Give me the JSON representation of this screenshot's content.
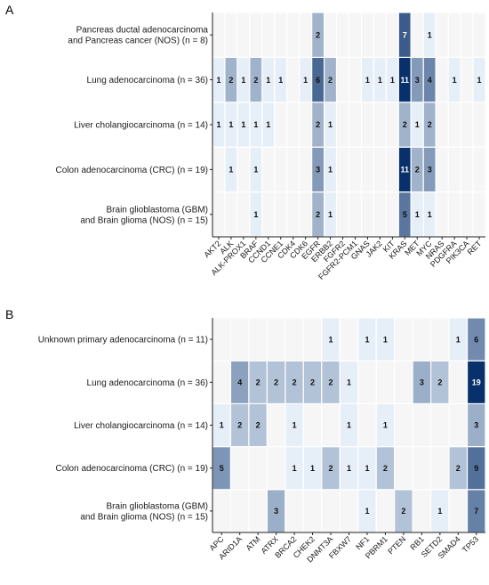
{
  "colors": {
    "empty": "#f6f6f6",
    "low": "#e6eff8",
    "high": "#08306b",
    "grid_line": "#ffffff",
    "axis": "#222222"
  },
  "chart_data": [
    {
      "type": "heatmap",
      "panel": "A",
      "rows": [
        "Brain glioblastoma (GBM)\nand Brain glioma (NOS) (n = 15)",
        "Colon adenocarcinoma (CRC) (n = 19)",
        "Liver cholangiocarcinoma (n = 14)",
        "Lung adenocarcinoma (n = 36)",
        "Pancreas ductal adenocarcinoma\nand Pancreas cancer (NOS) (n = 8)"
      ],
      "columns": [
        "AKT2",
        "ALK",
        "ALK-PROX1",
        "BRAF",
        "CCND1",
        "CCNE1",
        "CDK4",
        "CDK6",
        "EGFR",
        "ERBB2",
        "FGFR2",
        "FGFR2-PCM1",
        "GNAS",
        "JAK2",
        "KIT",
        "KRAS",
        "MET",
        "MYC",
        "NRAS",
        "PDGFRA",
        "PIK3CA",
        "RET"
      ],
      "values": [
        [
          0,
          0,
          0,
          1,
          0,
          0,
          0,
          0,
          2,
          1,
          0,
          0,
          0,
          0,
          0,
          5,
          1,
          1,
          0,
          0,
          0,
          0
        ],
        [
          0,
          1,
          0,
          1,
          0,
          0,
          0,
          0,
          3,
          1,
          0,
          0,
          0,
          0,
          0,
          11,
          2,
          3,
          0,
          0,
          0,
          0
        ],
        [
          1,
          1,
          1,
          1,
          1,
          0,
          0,
          0,
          2,
          1,
          0,
          0,
          0,
          0,
          0,
          2,
          1,
          2,
          0,
          0,
          0,
          0
        ],
        [
          1,
          2,
          1,
          2,
          1,
          1,
          0,
          1,
          6,
          2,
          0,
          0,
          1,
          1,
          1,
          11,
          3,
          4,
          0,
          1,
          0,
          1
        ],
        [
          0,
          0,
          0,
          0,
          0,
          0,
          0,
          0,
          2,
          0,
          0,
          0,
          0,
          0,
          0,
          7,
          0,
          1,
          0,
          0,
          0,
          0
        ]
      ],
      "vmax": 11
    },
    {
      "type": "heatmap",
      "panel": "B",
      "rows": [
        "Brain glioblastoma (GBM)\nand Brain glioma (NOS) (n = 15)",
        "Colon adenocarcinoma (CRC) (n = 19)",
        "Liver cholangiocarcinoma (n = 14)",
        "Lung adenocarcinoma (n = 36)",
        "Unknown primary adenocarcinoma (n = 11)"
      ],
      "columns": [
        "APC",
        "ARID1A",
        "ATM",
        "ATRX",
        "BRCA2",
        "CHEK2",
        "DNMT3A",
        "FBXW7",
        "NF1",
        "PBRM1",
        "PTEN",
        "RB1",
        "SETD2",
        "SMAD4",
        "TP53"
      ],
      "values": [
        [
          0,
          0,
          0,
          3,
          0,
          0,
          0,
          0,
          1,
          0,
          2,
          0,
          1,
          0,
          7
        ],
        [
          5,
          0,
          0,
          0,
          1,
          1,
          2,
          1,
          1,
          2,
          0,
          0,
          0,
          2,
          9
        ],
        [
          1,
          2,
          2,
          0,
          1,
          0,
          0,
          1,
          0,
          1,
          0,
          0,
          0,
          0,
          3
        ],
        [
          0,
          4,
          2,
          2,
          2,
          2,
          2,
          1,
          0,
          0,
          0,
          3,
          2,
          0,
          19
        ],
        [
          0,
          0,
          0,
          0,
          0,
          0,
          1,
          0,
          1,
          1,
          0,
          0,
          0,
          1,
          6
        ]
      ],
      "vmax": 19
    }
  ]
}
